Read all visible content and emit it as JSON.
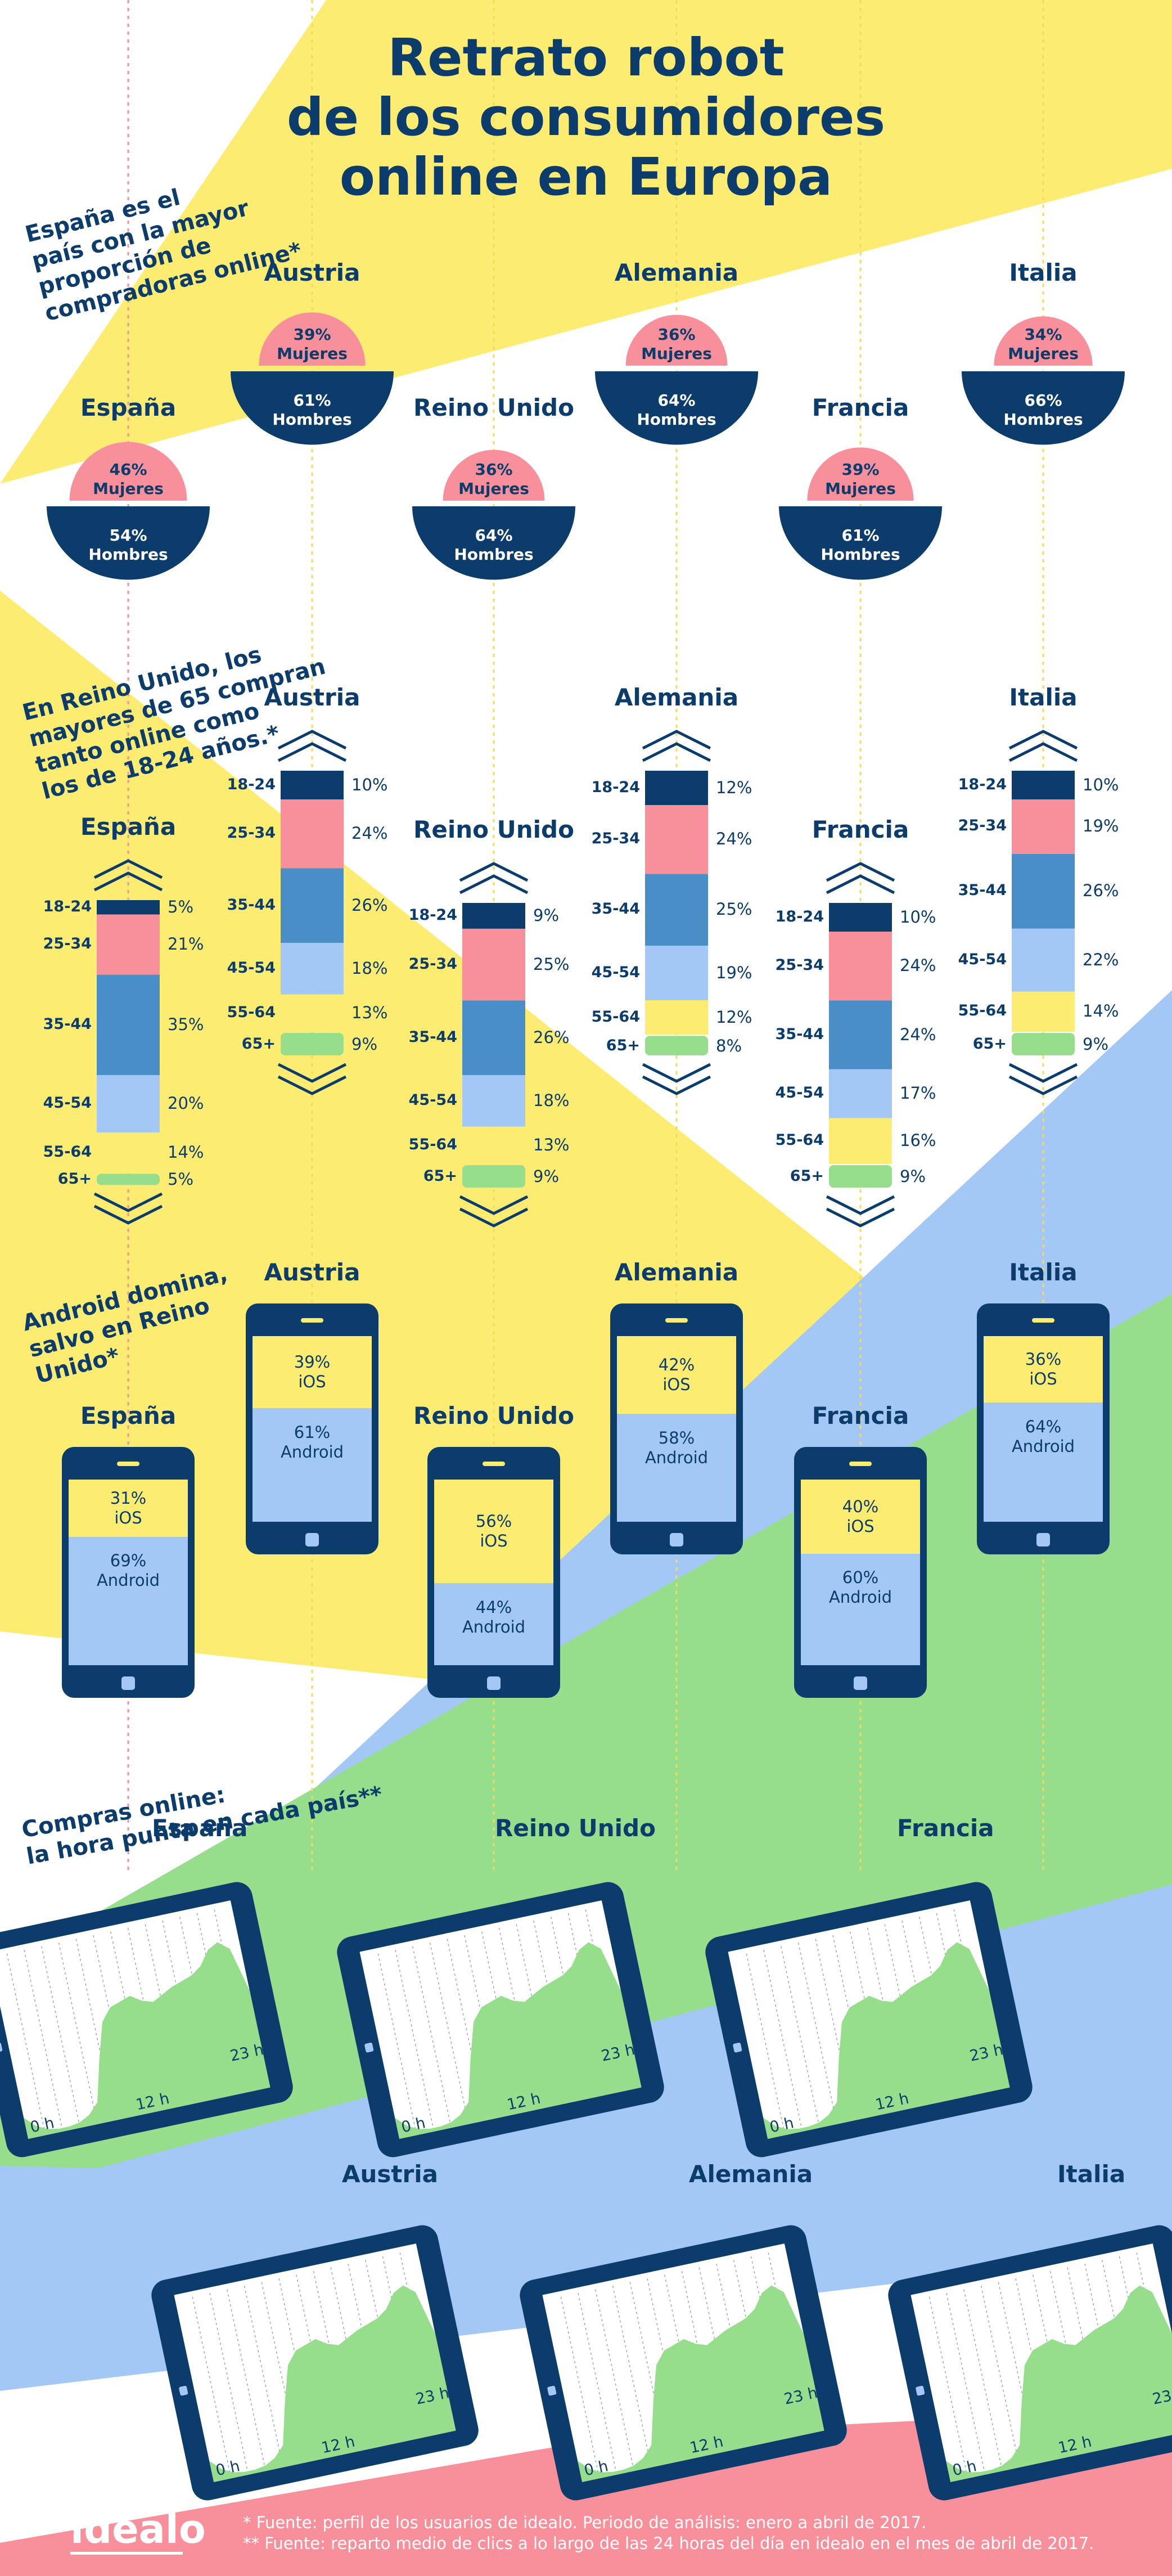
{
  "title_lines": [
    "Retrato robot",
    "de los consumidores",
    "online en Europa"
  ],
  "sections": {
    "gender": [
      "España es el",
      "país con la mayor",
      "proporción de",
      "compradoras online*"
    ],
    "age": [
      "En Reino Unido, los",
      "mayores de 65 compran",
      "tanto online como",
      "los de 18-24 años.*"
    ],
    "os": [
      "Android domina,",
      "salvo en Reino",
      "Unido*"
    ],
    "hours": [
      "Compras online:",
      "la hora punta en cada país**"
    ]
  },
  "gender_labels": {
    "women": "Mujeres",
    "men": "Hombres"
  },
  "age_groups": [
    "18-24",
    "25-34",
    "35-44",
    "45-54",
    "55-64",
    "65+"
  ],
  "os_labels": {
    "ios": "iOS",
    "android": "Android"
  },
  "hour_labels": [
    "0 h",
    "12 h",
    "23 h"
  ],
  "countries": [
    {
      "name": "España",
      "women": "46%",
      "men": "54%",
      "ages": [
        "5%",
        "21%",
        "35%",
        "20%",
        "14%",
        "5%"
      ],
      "ios": "31%",
      "android": "69%"
    },
    {
      "name": "Austria",
      "women": "39%",
      "men": "61%",
      "ages": [
        "10%",
        "24%",
        "26%",
        "18%",
        "13%",
        "9%"
      ],
      "ios": "39%",
      "android": "61%"
    },
    {
      "name": "Reino Unido",
      "women": "36%",
      "men": "64%",
      "ages": [
        "9%",
        "25%",
        "26%",
        "18%",
        "13%",
        "9%"
      ],
      "ios": "56%",
      "android": "44%"
    },
    {
      "name": "Alemania",
      "women": "36%",
      "men": "64%",
      "ages": [
        "12%",
        "24%",
        "25%",
        "19%",
        "12%",
        "8%"
      ],
      "ios": "42%",
      "android": "58%"
    },
    {
      "name": "Francia",
      "women": "39%",
      "men": "61%",
      "ages": [
        "10%",
        "24%",
        "24%",
        "17%",
        "16%",
        "9%"
      ],
      "ios": "40%",
      "android": "60%"
    },
    {
      "name": "Italia",
      "women": "34%",
      "men": "66%",
      "ages": [
        "10%",
        "19%",
        "26%",
        "22%",
        "14%",
        "9%"
      ],
      "ios": "36%",
      "android": "64%"
    }
  ],
  "chart_data": [
    {
      "type": "bar",
      "title": "España es el país con la mayor proporción de compradoras online*",
      "categories": [
        "España",
        "Austria",
        "Reino Unido",
        "Alemania",
        "Francia",
        "Italia"
      ],
      "series": [
        {
          "name": "Mujeres",
          "values": [
            46,
            39,
            36,
            36,
            39,
            34
          ]
        },
        {
          "name": "Hombres",
          "values": [
            54,
            61,
            64,
            64,
            61,
            66
          ]
        }
      ]
    },
    {
      "type": "bar",
      "title": "En Reino Unido, los mayores de 65 compran tanto online como los de 18-24 años.*",
      "categories": [
        "España",
        "Austria",
        "Reino Unido",
        "Alemania",
        "Francia",
        "Italia"
      ],
      "series": [
        {
          "name": "18-24",
          "values": [
            5,
            10,
            9,
            12,
            10,
            10
          ]
        },
        {
          "name": "25-34",
          "values": [
            21,
            24,
            25,
            24,
            24,
            19
          ]
        },
        {
          "name": "35-44",
          "values": [
            35,
            26,
            26,
            25,
            24,
            26
          ]
        },
        {
          "name": "45-54",
          "values": [
            20,
            18,
            18,
            19,
            17,
            22
          ]
        },
        {
          "name": "55-64",
          "values": [
            14,
            13,
            13,
            12,
            16,
            14
          ]
        },
        {
          "name": "65+",
          "values": [
            5,
            9,
            9,
            8,
            9,
            9
          ]
        }
      ]
    },
    {
      "type": "bar",
      "title": "Android domina, salvo en Reino Unido*",
      "categories": [
        "España",
        "Austria",
        "Reino Unido",
        "Alemania",
        "Francia",
        "Italia"
      ],
      "series": [
        {
          "name": "iOS",
          "values": [
            31,
            39,
            56,
            42,
            40,
            36
          ]
        },
        {
          "name": "Android",
          "values": [
            69,
            61,
            44,
            58,
            60,
            64
          ]
        }
      ]
    },
    {
      "type": "area",
      "title": "Compras online: la hora punta en cada país**",
      "categories": [
        "España",
        "Reino Unido",
        "Francia",
        "Austria",
        "Alemania",
        "Italia"
      ],
      "x_ticks": [
        "0 h",
        "12 h",
        "23 h"
      ]
    }
  ],
  "footnotes": [
    "* Fuente: perfil de los usuarios de idealo. Periodo de análisis: enero a abril de 2017.",
    "** Fuente: reparto medio de clics a lo largo de las 24 horas del día en idealo en el mes de abril de 2017."
  ],
  "logo": "idealo",
  "colors": {
    "navy": "#0b3c6b",
    "pink": "#f7909b",
    "blue": "#4a8ec8",
    "lightblue": "#a3c8f5",
    "yellow": "#fcec72",
    "green": "#96de8c"
  }
}
